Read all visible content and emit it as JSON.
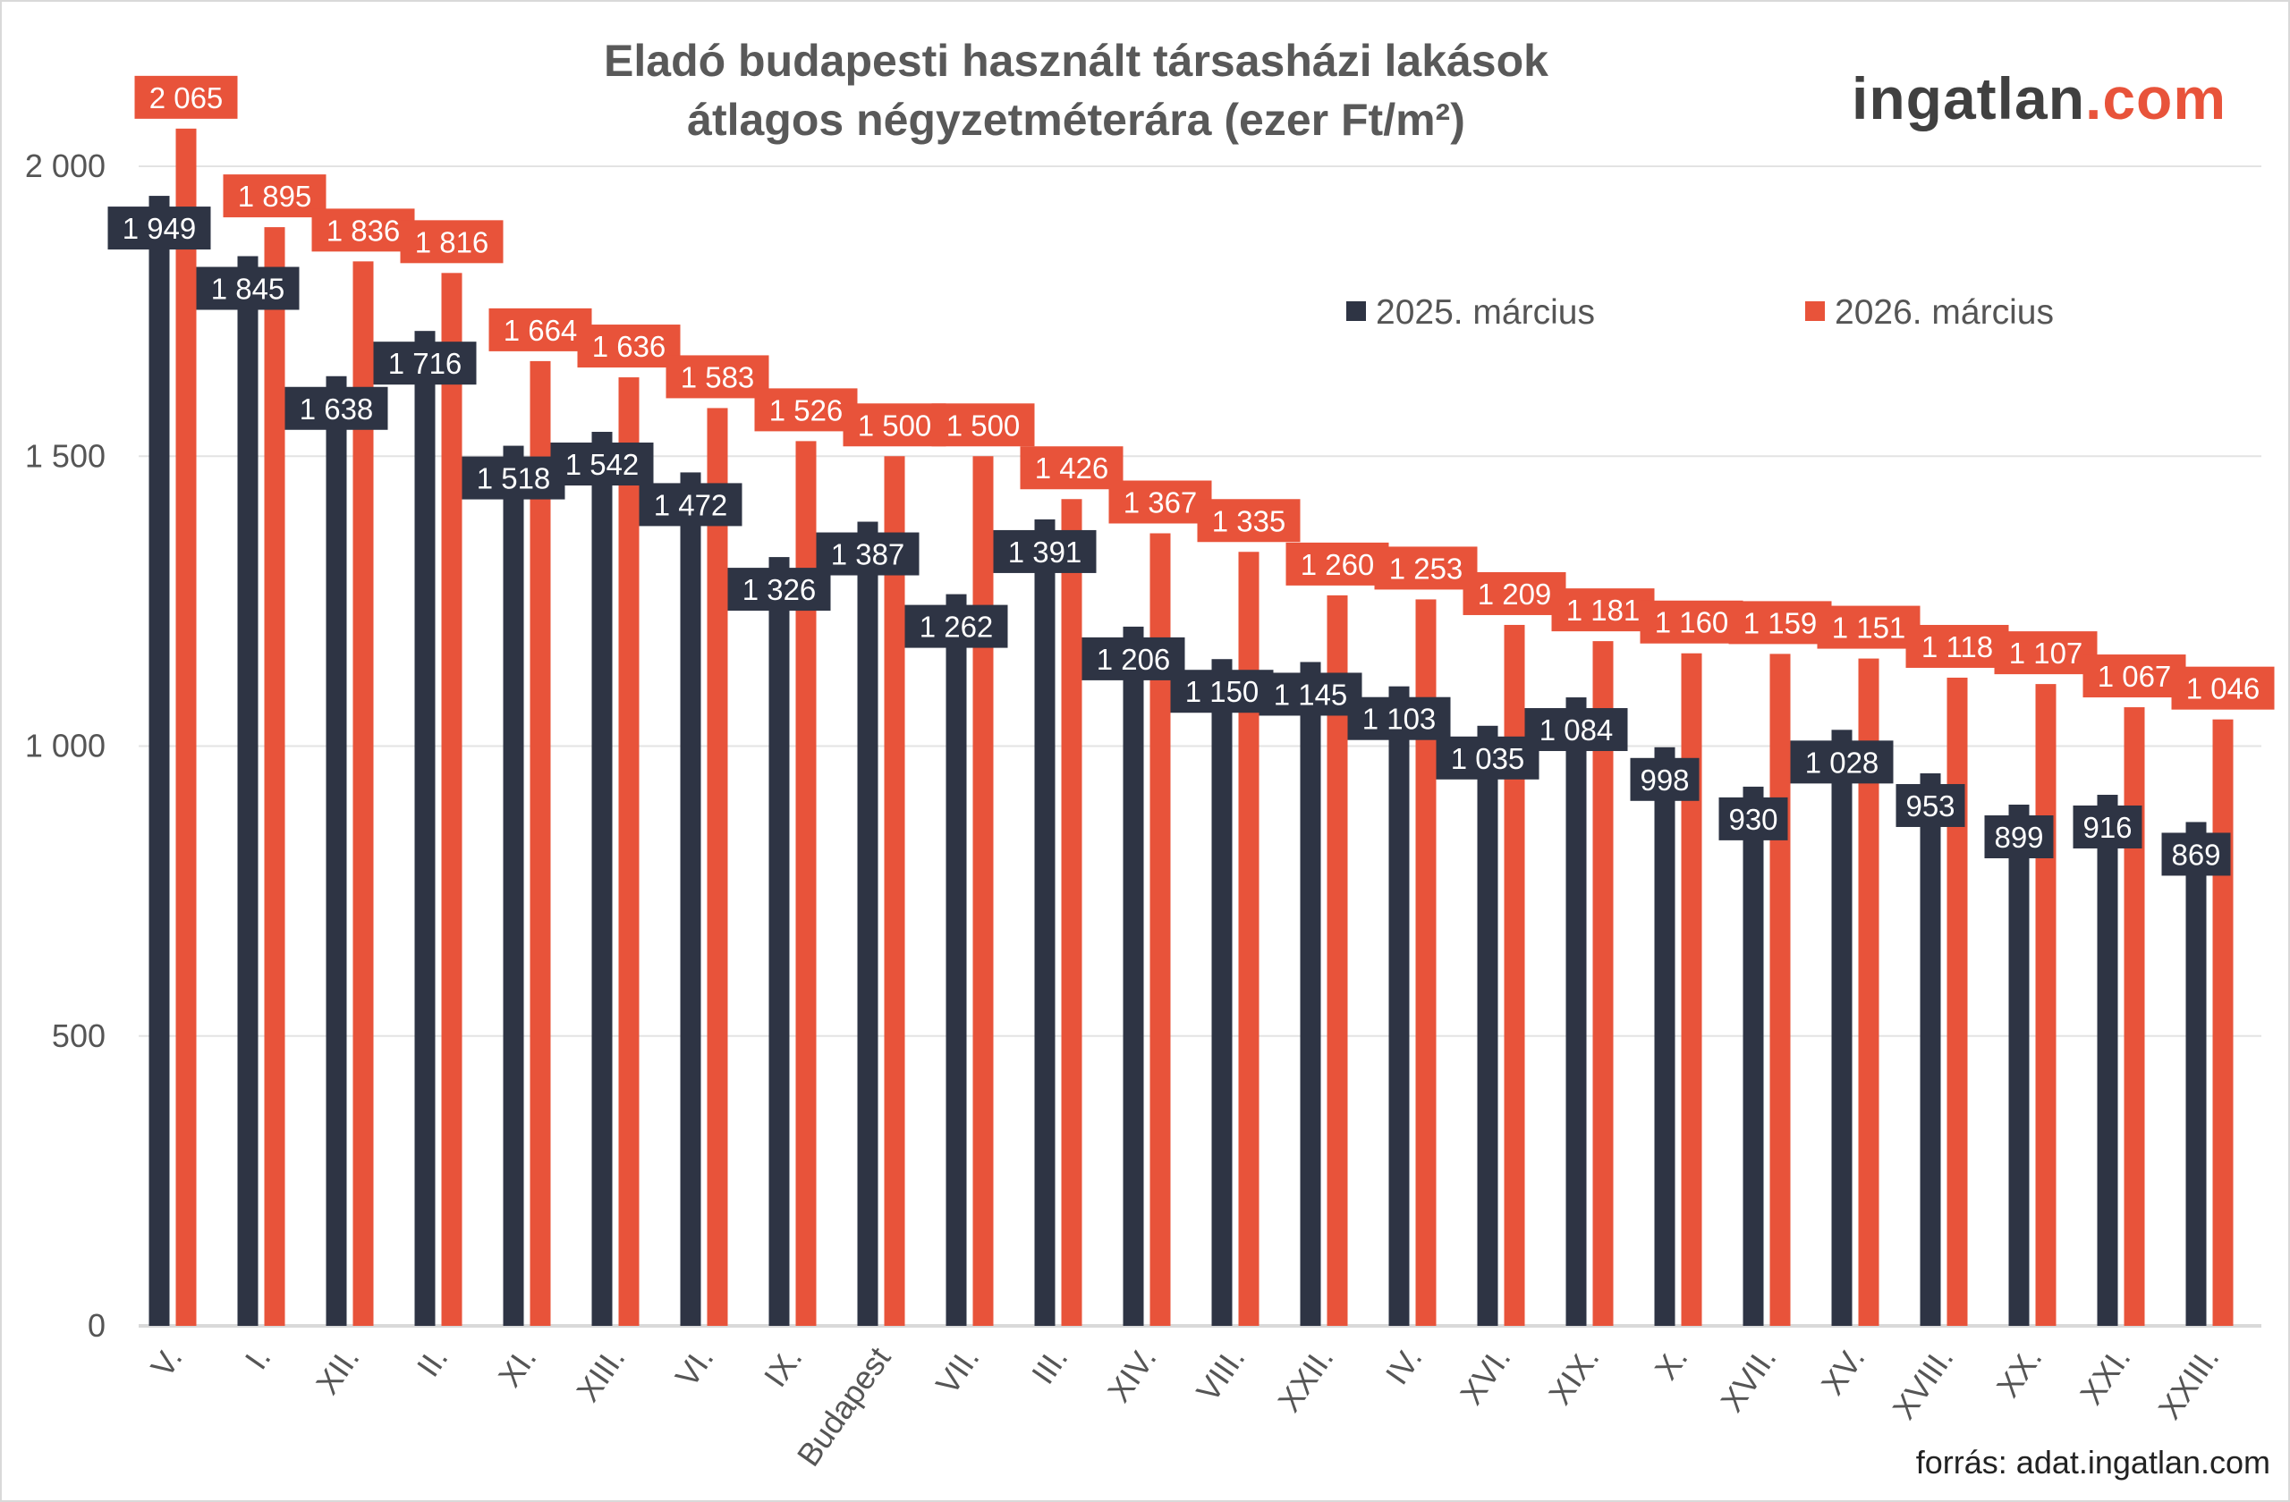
{
  "logo": {
    "main": "ingatlan",
    "accent": ".com"
  },
  "source": "forrás: adat.ingatlan.com",
  "chart_data": {
    "type": "bar",
    "title": [
      "Eladó budapesti használt társasházi lakások",
      "átlagos négyzetméterára (ezer Ft/m²)"
    ],
    "xlabel": "",
    "ylabel": "",
    "ylim": [
      0,
      2000
    ],
    "yticks": [
      0,
      500,
      1000,
      1500,
      2000
    ],
    "ytick_labels": [
      "0",
      "500",
      "1 000",
      "1 500",
      "2 000"
    ],
    "grid": true,
    "legend": "top-right",
    "categories": [
      "V.",
      "I.",
      "XII.",
      "II.",
      "XI.",
      "XIII.",
      "VI.",
      "IX.",
      "Budapest",
      "VII.",
      "III.",
      "XIV.",
      "VIII.",
      "XXII.",
      "IV.",
      "XVI.",
      "XIX.",
      "X.",
      "XVII.",
      "XV.",
      "XVIII.",
      "XX.",
      "XXI.",
      "XXIII."
    ],
    "series": [
      {
        "name": "2025. március",
        "color": "#2e3444",
        "values": [
          1949,
          1845,
          1638,
          1716,
          1518,
          1542,
          1472,
          1326,
          1387,
          1262,
          1391,
          1206,
          1150,
          1145,
          1103,
          1035,
          1084,
          998,
          930,
          1028,
          953,
          899,
          916,
          869
        ]
      },
      {
        "name": "2026. március",
        "color": "#e8533a",
        "values": [
          2065,
          1895,
          1836,
          1816,
          1664,
          1636,
          1583,
          1526,
          1500,
          1500,
          1426,
          1367,
          1335,
          1260,
          1253,
          1209,
          1181,
          1160,
          1159,
          1151,
          1118,
          1107,
          1067,
          1046
        ]
      }
    ]
  }
}
